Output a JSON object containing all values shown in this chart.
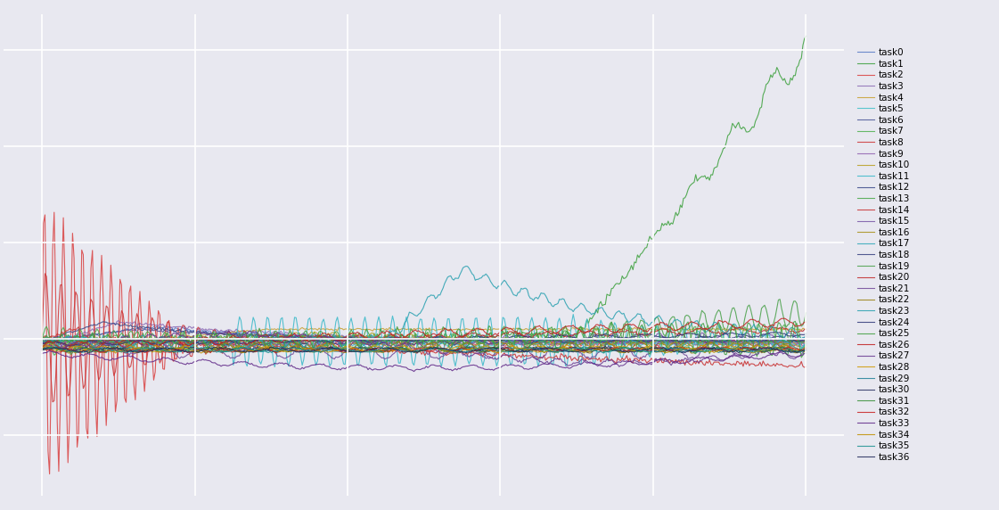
{
  "n_tasks": 37,
  "n_steps": 500,
  "background_color": "#e8e8f0",
  "grid_color": "white",
  "figsize": [
    11.21,
    5.72
  ],
  "task_colors": [
    "#5578c5",
    "#3ba03b",
    "#d93f3f",
    "#8b6ab5",
    "#c8a030",
    "#40c0c8",
    "#4a5598",
    "#50b050",
    "#cc3333",
    "#9060b0",
    "#b8a020",
    "#38b8c8",
    "#3a4888",
    "#48a848",
    "#c83030",
    "#7858a8",
    "#a89018",
    "#30a8b8",
    "#384080",
    "#48a048",
    "#c02828",
    "#704898",
    "#988010",
    "#28a0b0",
    "#303878",
    "#40a040",
    "#c02020",
    "#683890",
    "#d09800",
    "#208098",
    "#283060",
    "#389038",
    "#c82020",
    "#602888",
    "#c09000",
    "#189090",
    "#202858"
  ],
  "legend_labels": [
    "task0",
    "task1",
    "task2",
    "task3",
    "task4",
    "task5",
    "task6",
    "task7",
    "task8",
    "task9",
    "task10",
    "task11",
    "task12",
    "task13",
    "task14",
    "task15",
    "task16",
    "task17",
    "task18",
    "task19",
    "task20",
    "task21",
    "task22",
    "task23",
    "task24",
    "task25",
    "task26",
    "task27",
    "task28",
    "task29",
    "task30",
    "task31",
    "task32",
    "task33",
    "task34",
    "task35",
    "task36"
  ]
}
